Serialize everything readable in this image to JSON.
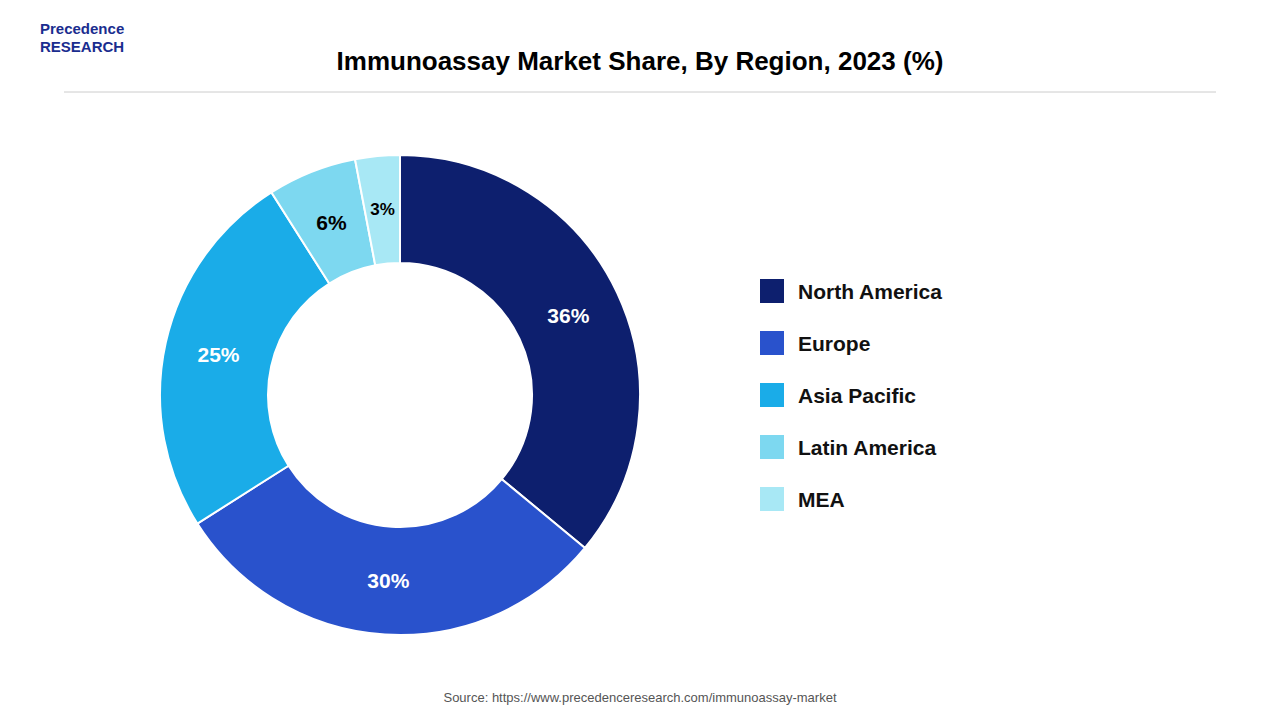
{
  "chart_data": {
    "type": "pie",
    "title": "Immunoassay Market Share, By Region, 2023 (%)",
    "annotations": [
      "Precedence\nRESEARCH",
      "Source: https://www.precedenceresearch.com/immunoassay-market"
    ],
    "categories": [
      "North America",
      "Europe",
      "Asia Pacific",
      "Latin America",
      "MEA"
    ],
    "values": [
      36,
      30,
      25,
      6,
      3
    ],
    "value_labels": [
      "36%",
      "30%",
      "25%",
      "6%",
      "3%"
    ],
    "colors": [
      "#0d1f6e",
      "#2952cc",
      "#1aace8",
      "#7dd8f0",
      "#a8e8f5"
    ],
    "data_labels": true,
    "legend": "right"
  }
}
